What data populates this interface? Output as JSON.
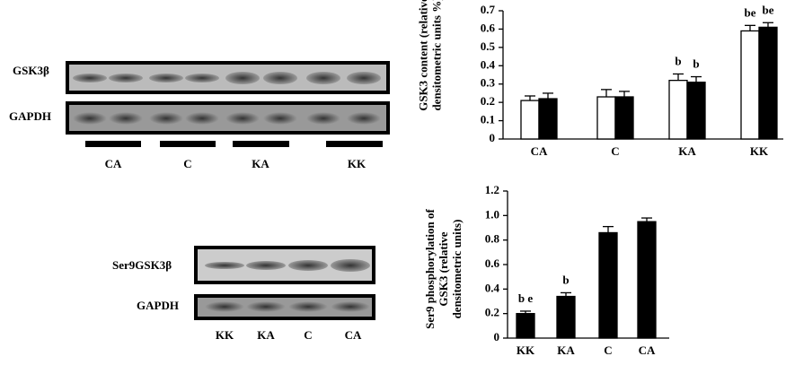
{
  "blots": {
    "top": {
      "rows": [
        "GSK3β",
        "GAPDH"
      ],
      "groups": [
        "CA",
        "C",
        "KA",
        "KK"
      ]
    },
    "bottom": {
      "rows": [
        "Ser9GSK3β",
        "GAPDH"
      ],
      "lanes": [
        "KK",
        "KA",
        "C",
        "CA"
      ]
    }
  },
  "chart_data": [
    {
      "type": "bar",
      "ylabel": [
        "GSK3 content (relative",
        "densitometric units %)"
      ],
      "categories": [
        "CA",
        "C",
        "KA",
        "KK"
      ],
      "series": [
        {
          "color": "#ffffff",
          "values": [
            0.21,
            0.23,
            0.32,
            0.59
          ],
          "errors": [
            0.025,
            0.04,
            0.035,
            0.03
          ],
          "annotations": [
            null,
            null,
            "b",
            "be"
          ]
        },
        {
          "color": "#000000",
          "values": [
            0.22,
            0.23,
            0.31,
            0.61
          ],
          "errors": [
            0.03,
            0.03,
            0.03,
            0.025
          ],
          "annotations": [
            null,
            null,
            "b",
            "be"
          ]
        }
      ],
      "ylim": [
        0,
        0.7
      ],
      "yticks": [
        0,
        0.1,
        0.2,
        0.3,
        0.4,
        0.5,
        0.6,
        0.7
      ]
    },
    {
      "type": "bar",
      "ylabel": [
        "Ser9 phosphorylation of",
        "GSK3 (relative",
        "densitometric units)"
      ],
      "categories": [
        "KK",
        "KA",
        "C",
        "CA"
      ],
      "series": [
        {
          "color": "#000000",
          "values": [
            0.2,
            0.34,
            0.86,
            0.95
          ],
          "errors": [
            0.02,
            0.03,
            0.05,
            0.03
          ],
          "annotations": [
            "b e",
            "b",
            null,
            null
          ]
        }
      ],
      "ylim": [
        0,
        1.2
      ],
      "yticks": [
        0,
        0.2,
        0.4,
        0.6,
        0.8,
        {
          "value": 1,
          "label": "1.0"
        },
        1.2
      ]
    }
  ]
}
